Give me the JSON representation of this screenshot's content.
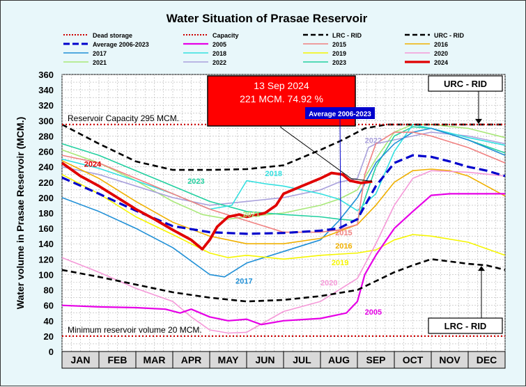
{
  "chart_data": {
    "type": "line",
    "title": "Water Situation of Prasae Reservoir",
    "ylabel": "Water volume in Prasae Reservoir (MCM.)",
    "xlabel": "",
    "ylim": [
      0,
      360
    ],
    "yticks": [
      0,
      20,
      40,
      60,
      80,
      100,
      120,
      140,
      160,
      180,
      200,
      220,
      240,
      260,
      280,
      300,
      320,
      340,
      360
    ],
    "months": [
      "JAN",
      "FEB",
      "MAR",
      "APR",
      "MAY",
      "JUN",
      "JUL",
      "AUG",
      "SEP",
      "OCT",
      "NOV",
      "DEC"
    ],
    "grid": true,
    "legend_position": "top",
    "legend": [
      {
        "name": "Dead storage",
        "color": "#cc0000",
        "style": "dotted"
      },
      {
        "name": "Capacity",
        "color": "#cc0000",
        "style": "dotted"
      },
      {
        "name": "LRC - RID",
        "color": "#000000",
        "style": "dashed"
      },
      {
        "name": "URC - RID",
        "color": "#000000",
        "style": "dashed"
      },
      {
        "name": "Average 2006-2023",
        "color": "#0000cc",
        "style": "dashed"
      },
      {
        "name": "2005",
        "color": "#e600e6",
        "style": "solid"
      },
      {
        "name": "2015",
        "color": "#f08080",
        "style": "solid"
      },
      {
        "name": "2016",
        "color": "#f0b000",
        "style": "solid"
      },
      {
        "name": "2017",
        "color": "#1f8fd6",
        "style": "solid"
      },
      {
        "name": "2018",
        "color": "#33e0e0",
        "style": "solid"
      },
      {
        "name": "2019",
        "color": "#f5f500",
        "style": "solid"
      },
      {
        "name": "2020",
        "color": "#f598d8",
        "style": "solid"
      },
      {
        "name": "2021",
        "color": "#a8e878",
        "style": "solid"
      },
      {
        "name": "2022",
        "color": "#a9a0dc",
        "style": "solid"
      },
      {
        "name": "2023",
        "color": "#22d0a0",
        "style": "solid"
      },
      {
        "name": "2024",
        "color": "#e00000",
        "style": "solid"
      }
    ],
    "reference_lines": [
      {
        "name": "Capacity",
        "value": 295,
        "label": "Reservoir Capacity 295 MCM."
      },
      {
        "name": "Dead storage",
        "value": 20,
        "label": "Minimum reservoir volume 20 MCM."
      }
    ],
    "series": [
      {
        "name": "URC - RID",
        "x": [
          0,
          1,
          2,
          3,
          4,
          5,
          6,
          7,
          7.6,
          8.2,
          8.8,
          9.5,
          10,
          11,
          12
        ],
        "values": [
          295,
          270,
          247,
          236,
          236,
          237,
          242,
          262,
          275,
          290,
          295,
          295,
          295,
          295,
          295
        ]
      },
      {
        "name": "LRC - RID",
        "x": [
          0,
          1,
          2,
          3,
          4,
          5,
          6,
          7,
          8,
          9,
          9.5,
          10,
          10.5,
          11,
          11.5,
          12
        ],
        "values": [
          106,
          97,
          87,
          77,
          70,
          65,
          67,
          72,
          80,
          103,
          112,
          120,
          117,
          114,
          112,
          106
        ]
      },
      {
        "name": "Average 2006-2023",
        "x": [
          0,
          1,
          2,
          3,
          4,
          5,
          6,
          7,
          7.5,
          8,
          8.5,
          9,
          9.5,
          10,
          10.5,
          11,
          11.5,
          12
        ],
        "values": [
          226,
          205,
          183,
          163,
          155,
          153,
          154,
          157,
          160,
          172,
          215,
          245,
          255,
          253,
          247,
          240,
          235,
          228
        ]
      },
      {
        "name": "2005",
        "x": [
          0,
          1,
          2,
          2.8,
          3.2,
          3.5,
          4,
          4.5,
          5,
          5.4,
          6,
          7,
          7.7,
          8,
          8.2,
          8.5,
          9,
          9.5,
          10,
          10.5,
          11,
          12
        ],
        "values": [
          60,
          58,
          57,
          55,
          50,
          55,
          45,
          40,
          42,
          35,
          40,
          43,
          50,
          65,
          100,
          125,
          160,
          182,
          203,
          205,
          205,
          205
        ]
      },
      {
        "name": "2015",
        "x": [
          0,
          1,
          2,
          3,
          4,
          5,
          6,
          7,
          7.5,
          8,
          8.2,
          8.5,
          9,
          9.5,
          10,
          11,
          12
        ],
        "values": [
          255,
          245,
          225,
          205,
          185,
          170,
          155,
          155,
          158,
          165,
          230,
          270,
          285,
          285,
          280,
          265,
          245
        ]
      },
      {
        "name": "2016",
        "x": [
          0,
          1,
          2,
          3,
          4,
          5,
          6,
          7,
          8,
          8.5,
          9,
          9.5,
          10,
          10.5,
          11,
          12
        ],
        "values": [
          248,
          225,
          195,
          168,
          150,
          140,
          140,
          147,
          165,
          190,
          220,
          235,
          237,
          235,
          228,
          202
        ]
      },
      {
        "name": "2017",
        "x": [
          0,
          1,
          2,
          3,
          4,
          4.4,
          5,
          6,
          7,
          7.5,
          8,
          8.5,
          9,
          9.5,
          10,
          11,
          12
        ],
        "values": [
          200,
          182,
          160,
          135,
          100,
          97,
          115,
          130,
          145,
          170,
          200,
          245,
          270,
          285,
          290,
          275,
          255
        ]
      },
      {
        "name": "2018",
        "x": [
          0,
          1,
          2,
          3,
          4,
          4.6,
          5,
          5.5,
          6,
          6.5,
          7,
          7.5,
          8,
          8.5,
          9,
          9.5,
          10,
          11,
          12
        ],
        "values": [
          250,
          238,
          222,
          205,
          185,
          190,
          222,
          218,
          215,
          210,
          205,
          198,
          183,
          205,
          260,
          295,
          290,
          278,
          268
        ]
      },
      {
        "name": "2019",
        "x": [
          0,
          1,
          2,
          3,
          4,
          4.5,
          5,
          6,
          7,
          8,
          8.5,
          9,
          9.5,
          10,
          11,
          12
        ],
        "values": [
          230,
          205,
          175,
          152,
          128,
          122,
          125,
          120,
          125,
          128,
          132,
          145,
          152,
          150,
          142,
          125
        ]
      },
      {
        "name": "2020",
        "x": [
          0,
          1,
          2,
          3,
          3.5,
          4,
          4.5,
          5,
          6,
          7,
          7.5,
          8,
          8.5,
          9,
          9.5,
          10,
          11,
          12
        ],
        "values": [
          122,
          103,
          82,
          65,
          45,
          28,
          24,
          25,
          52,
          65,
          80,
          95,
          140,
          190,
          225,
          235,
          233,
          228
        ]
      },
      {
        "name": "2021",
        "x": [
          0,
          1,
          2,
          3,
          3.8,
          4.5,
          5,
          6,
          7,
          7.5,
          8,
          8.5,
          9,
          9.5,
          10,
          11,
          12
        ],
        "values": [
          262,
          245,
          222,
          195,
          178,
          172,
          175,
          180,
          190,
          198,
          210,
          250,
          285,
          295,
          295,
          290,
          278
        ]
      },
      {
        "name": "2022",
        "x": [
          0,
          1,
          2,
          3,
          4,
          5,
          6,
          7,
          7.5,
          8,
          8.3,
          8.5,
          9,
          9.5,
          10,
          11,
          12
        ],
        "values": [
          240,
          230,
          215,
          200,
          190,
          195,
          200,
          210,
          220,
          225,
          265,
          270,
          275,
          280,
          285,
          280,
          270
        ]
      },
      {
        "name": "2023",
        "x": [
          0,
          1,
          2,
          3,
          4,
          5,
          6,
          7,
          7.5,
          8,
          8.5,
          9,
          9.5,
          10,
          11,
          12
        ],
        "values": [
          270,
          255,
          235,
          215,
          195,
          182,
          178,
          175,
          172,
          170,
          240,
          280,
          292,
          290,
          275,
          258
        ]
      },
      {
        "name": "2024",
        "x": [
          0,
          0.5,
          1,
          1.5,
          2,
          2.5,
          3,
          3.5,
          3.8,
          4.0,
          4.2,
          4.5,
          4.8,
          5,
          5.5,
          5.8,
          6,
          6.5,
          7,
          7.3,
          7.6,
          7.8,
          8.1,
          8.4
        ],
        "values": [
          245,
          228,
          215,
          200,
          185,
          172,
          158,
          145,
          133,
          145,
          162,
          175,
          178,
          175,
          180,
          190,
          205,
          215,
          225,
          232,
          230,
          222,
          219,
          221
        ]
      }
    ],
    "series_labels": [
      {
        "series": "2024",
        "text": "2024",
        "x": 0.6,
        "y": 240
      },
      {
        "series": "2023",
        "text": "2023",
        "x": 3.4,
        "y": 218
      },
      {
        "series": "2018",
        "text": "2018",
        "x": 5.5,
        "y": 228
      },
      {
        "series": "2021",
        "text": "2021",
        "x": 4.9,
        "y": 175
      },
      {
        "series": "2015",
        "text": "2015",
        "x": 7.4,
        "y": 151
      },
      {
        "series": "2016",
        "text": "2016",
        "x": 7.4,
        "y": 134
      },
      {
        "series": "2019",
        "text": "2019",
        "x": 7.3,
        "y": 112
      },
      {
        "series": "2017",
        "text": "2017",
        "x": 4.7,
        "y": 88
      },
      {
        "series": "2020",
        "text": "2020",
        "x": 7.0,
        "y": 86
      },
      {
        "series": "2005",
        "text": "2005",
        "x": 8.2,
        "y": 48
      },
      {
        "series": "2022",
        "text": "2022",
        "x": 8.2,
        "y": 271
      }
    ],
    "annotations": {
      "current": {
        "date": "13 Sep 2024",
        "value": "221 MCM. 74.92 %",
        "x": 8.4,
        "y": 221
      },
      "average_box": {
        "text": "Average 2006-2023",
        "x": 7.55,
        "y": 160
      },
      "urc_box": {
        "text": "URC - RID",
        "x": 10.3,
        "y": 295
      },
      "lrc_box": {
        "text": "LRC - RID",
        "x": 10.8,
        "y": 112
      }
    }
  }
}
